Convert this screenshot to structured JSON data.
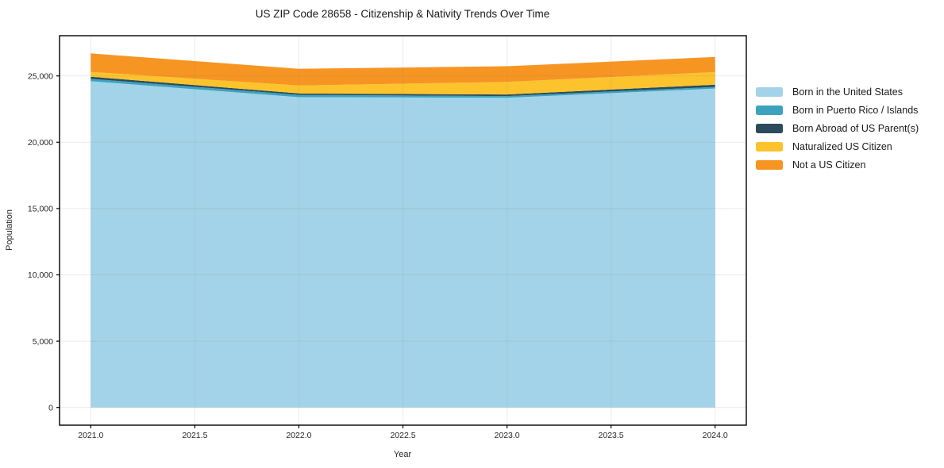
{
  "chart_data": {
    "type": "area",
    "stacked": true,
    "title": "US ZIP Code 28658 - Citizenship & Nativity Trends Over Time",
    "xlabel": "Year",
    "ylabel": "Population",
    "x": [
      2021,
      2022,
      2023,
      2024
    ],
    "series": [
      {
        "name": "Born in the United States",
        "color": "#a3d3e8",
        "values": [
          24600,
          23400,
          23350,
          24050
        ]
      },
      {
        "name": "Born in Puerto Rico / Islands",
        "color": "#3ca3bf",
        "values": [
          180,
          170,
          130,
          120
        ]
      },
      {
        "name": "Born Abroad of US Parent(s)",
        "color": "#2b4b5c",
        "values": [
          160,
          110,
          120,
          170
        ]
      },
      {
        "name": "Naturalized US Citizen",
        "color": "#fcc32d",
        "values": [
          360,
          600,
          950,
          950
        ]
      },
      {
        "name": "Not a US Citizen",
        "color": "#f79522",
        "values": [
          1400,
          1260,
          1180,
          1140
        ]
      }
    ],
    "xlim": [
      2020.85,
      2024.15
    ],
    "ylim": [
      -1335,
      28035
    ],
    "xticks": [
      2021.0,
      2021.5,
      2022.0,
      2022.5,
      2023.0,
      2023.5,
      2024.0
    ],
    "yticks": [
      0,
      5000,
      10000,
      15000,
      20000,
      25000
    ],
    "grid": true,
    "legend_position": "right",
    "colors": {
      "background": "#ffffff",
      "spine": "#000000",
      "grid": "#808080",
      "tick_label": "#262626",
      "title_text": "#1a1a1a"
    }
  }
}
